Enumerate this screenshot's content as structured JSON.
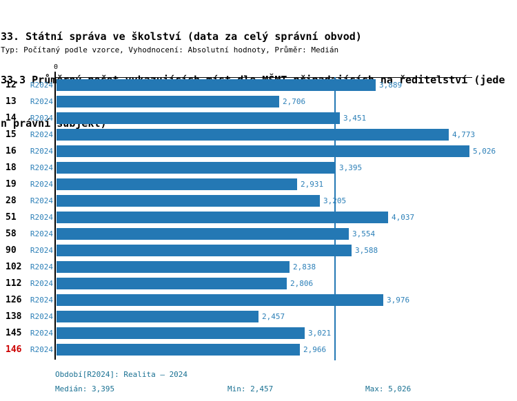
{
  "title": {
    "lines": [
      "33. Státní správa ve školství (data za celý správní obvod)",
      "33.3 Průměrný počet vykazujících míst dle MŠMT připadajících na ředitelství (jede",
      "n právní subjekt)"
    ]
  },
  "subtitle": "Typ: Počítaný podle vzorce, Vyhodnocení: Absolutní hodnoty, Průměr: Medián",
  "axis": {
    "zero_label": "0"
  },
  "chart_data": {
    "type": "bar",
    "orientation": "horizontal",
    "bar_color": "#2478b4",
    "highlight_color": "#cc0000",
    "series_label": "R2024",
    "axis_range": [
      0,
      5060
    ],
    "median_value": 3395,
    "grid": false,
    "rows": [
      {
        "category": "12",
        "period": "R2024",
        "value": 3889,
        "label": "3,889",
        "highlight": false
      },
      {
        "category": "13",
        "period": "R2024",
        "value": 2706,
        "label": "2,706",
        "highlight": false
      },
      {
        "category": "14",
        "period": "R2024",
        "value": 3451,
        "label": "3,451",
        "highlight": false
      },
      {
        "category": "15",
        "period": "R2024",
        "value": 4773,
        "label": "4,773",
        "highlight": false
      },
      {
        "category": "16",
        "period": "R2024",
        "value": 5026,
        "label": "5,026",
        "highlight": false
      },
      {
        "category": "18",
        "period": "R2024",
        "value": 3395,
        "label": "3,395",
        "highlight": false
      },
      {
        "category": "19",
        "period": "R2024",
        "value": 2931,
        "label": "2,931",
        "highlight": false
      },
      {
        "category": "28",
        "period": "R2024",
        "value": 3205,
        "label": "3,205",
        "highlight": false
      },
      {
        "category": "51",
        "period": "R2024",
        "value": 4037,
        "label": "4,037",
        "highlight": false
      },
      {
        "category": "58",
        "period": "R2024",
        "value": 3554,
        "label": "3,554",
        "highlight": false
      },
      {
        "category": "90",
        "period": "R2024",
        "value": 3588,
        "label": "3,588",
        "highlight": false
      },
      {
        "category": "102",
        "period": "R2024",
        "value": 2838,
        "label": "2,838",
        "highlight": false
      },
      {
        "category": "112",
        "period": "R2024",
        "value": 2806,
        "label": "2,806",
        "highlight": false
      },
      {
        "category": "126",
        "period": "R2024",
        "value": 3976,
        "label": "3,976",
        "highlight": false
      },
      {
        "category": "138",
        "period": "R2024",
        "value": 2457,
        "label": "2,457",
        "highlight": false
      },
      {
        "category": "145",
        "period": "R2024",
        "value": 3021,
        "label": "3,021",
        "highlight": false
      },
      {
        "category": "146",
        "period": "R2024",
        "value": 2966,
        "label": "2,966",
        "highlight": true
      }
    ]
  },
  "footer": {
    "period": "Období[R2024]: Realita – 2024",
    "median": "Medián: 3,395",
    "min": "Min: 2,457",
    "max": "Max: 5,026"
  }
}
